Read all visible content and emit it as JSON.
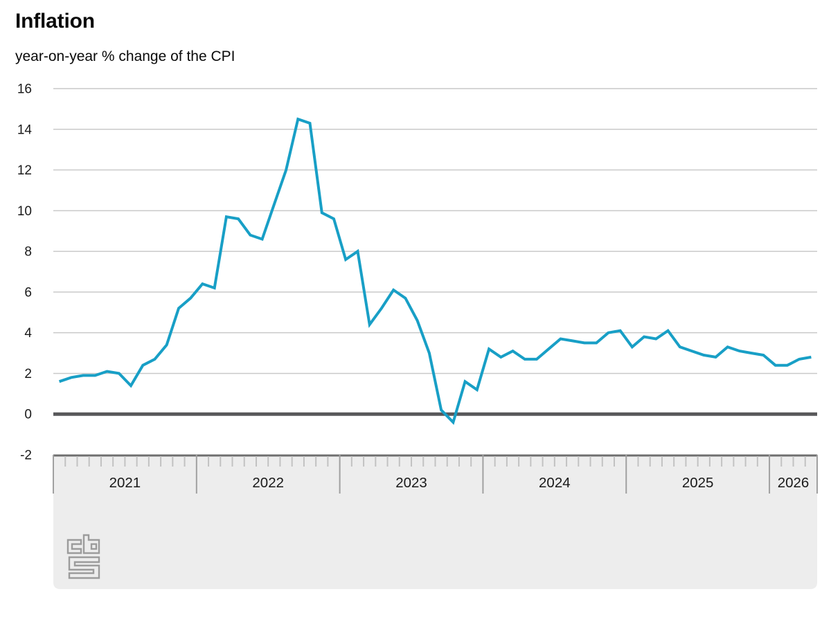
{
  "header": {
    "title": "Inflation",
    "subtitle": "year-on-year % change of the CPI"
  },
  "chart_data": {
    "type": "line",
    "title": "Inflation",
    "subtitle": "year-on-year % change of the CPI",
    "unit": "%",
    "x_unit": "month",
    "x_start": "2021-01",
    "x_end": "2026-04",
    "year_labels": [
      "2021",
      "2022",
      "2023",
      "2024",
      "2025",
      "2026"
    ],
    "months_per_year": 12,
    "ylim": [
      -2,
      16
    ],
    "yticks": [
      16,
      14,
      12,
      10,
      8,
      6,
      4,
      2,
      0,
      -2
    ],
    "grid": "horizontal",
    "legend": "none",
    "series": [
      {
        "name": "CPI year-on-year % change",
        "values": [
          1.6,
          1.8,
          1.9,
          1.9,
          2.1,
          2.0,
          1.4,
          2.4,
          2.7,
          3.4,
          5.2,
          5.7,
          6.4,
          6.2,
          9.7,
          9.6,
          8.8,
          8.6,
          10.3,
          12.0,
          14.5,
          14.3,
          9.9,
          9.6,
          7.6,
          8.0,
          4.4,
          5.2,
          6.1,
          5.7,
          4.6,
          3.0,
          0.2,
          -0.4,
          1.6,
          1.2,
          3.2,
          2.8,
          3.1,
          2.7,
          2.7,
          3.2,
          3.7,
          3.6,
          3.5,
          3.5,
          4.0,
          4.1,
          3.3,
          3.8,
          3.7,
          4.1,
          3.3,
          3.1,
          2.9,
          2.8,
          3.3,
          3.1,
          3.0,
          2.9,
          2.4,
          2.4,
          2.7,
          2.8
        ]
      }
    ],
    "colors": {
      "line": "#189fc6",
      "grid": "#c9c9c9",
      "zero_line": "#58585a",
      "band_bg": "#ededed",
      "band_border": "#6e6e6e",
      "tick_minor": "#c2c2c2",
      "tick_major": "#a0a0a0",
      "text": "#1a1a1a",
      "logo": "#9c9c9c"
    }
  },
  "footer": {
    "logo_icon": "cbs-logo"
  }
}
